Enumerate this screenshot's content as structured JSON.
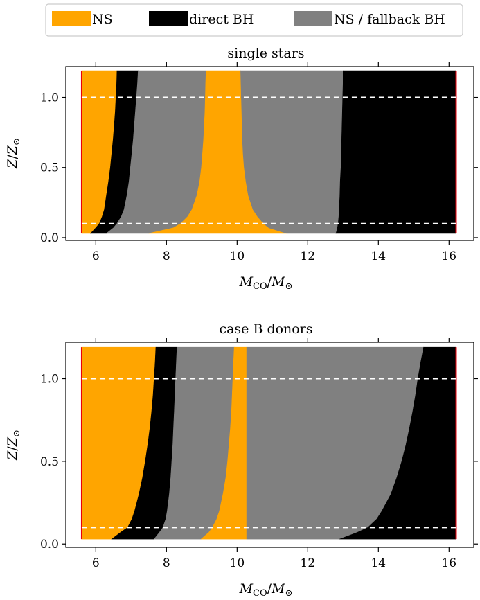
{
  "legend": {
    "entries": [
      {
        "label": "NS",
        "color": "#FFA500"
      },
      {
        "label": "direct BH",
        "color": "#000000"
      },
      {
        "label": "NS / fallback BH",
        "color": "#808080"
      }
    ]
  },
  "chart_data": [
    {
      "type": "area",
      "title": "single stars",
      "xlabel_main": "M",
      "xlabel_sub": "CO",
      "xlabel_sep": "/",
      "xlabel_main2": "M",
      "xlabel_sub2": "⊙",
      "ylabel_main": "Z",
      "ylabel_sep": "/",
      "ylabel_main2": "Z",
      "ylabel_sub2": "⊙",
      "xlim": [
        5.15,
        16.7
      ],
      "ylim": [
        -0.02,
        1.22
      ],
      "xticks": [
        6,
        8,
        10,
        12,
        14,
        16
      ],
      "xtick_labels": [
        "6",
        "8",
        "10",
        "12",
        "14",
        "16"
      ],
      "yticks": [
        0.0,
        0.5,
        1.0
      ],
      "ytick_labels": [
        "0.0",
        "0.5",
        "1.0"
      ],
      "z_range": [
        0.03,
        1.19
      ],
      "mass_range": [
        5.6,
        16.2
      ],
      "dashed_lines_y": [
        0.1,
        1.0
      ],
      "boundaries": {
        "z": [
          0.03,
          0.07,
          0.1,
          0.15,
          0.2,
          0.3,
          0.4,
          0.5,
          0.6,
          0.7,
          0.8,
          0.9,
          1.0,
          1.1,
          1.19
        ],
        "ns_to_bh1": [
          5.85,
          6.0,
          6.1,
          6.18,
          6.24,
          6.3,
          6.36,
          6.41,
          6.45,
          6.49,
          6.52,
          6.55,
          6.57,
          6.59,
          6.6
        ],
        "bh1_to_fb1": [
          6.3,
          6.5,
          6.6,
          6.72,
          6.8,
          6.88,
          6.94,
          6.98,
          7.02,
          7.06,
          7.09,
          7.12,
          7.15,
          7.18,
          7.2
        ],
        "fb1_to_ns2": [
          7.5,
          8.2,
          8.4,
          8.6,
          8.72,
          8.86,
          8.94,
          8.99,
          9.02,
          9.05,
          9.07,
          9.09,
          9.1,
          9.11,
          9.12
        ],
        "ns2_to_fb2": [
          11.4,
          10.9,
          10.75,
          10.58,
          10.45,
          10.32,
          10.25,
          10.2,
          10.17,
          10.15,
          10.14,
          10.13,
          10.12,
          10.11,
          10.1
        ],
        "fb2_to_bh2": [
          12.8,
          12.84,
          12.86,
          12.88,
          12.89,
          12.91,
          12.92,
          12.94,
          12.95,
          12.96,
          12.97,
          12.98,
          12.99,
          13.0,
          13.0
        ]
      }
    },
    {
      "type": "area",
      "title": "case B donors",
      "xlabel_main": "M",
      "xlabel_sub": "CO",
      "xlabel_sep": "/",
      "xlabel_main2": "M",
      "xlabel_sub2": "⊙",
      "ylabel_main": "Z",
      "ylabel_sep": "/",
      "ylabel_main2": "Z",
      "ylabel_sub2": "⊙",
      "xlim": [
        5.15,
        16.7
      ],
      "ylim": [
        -0.02,
        1.22
      ],
      "xticks": [
        6,
        8,
        10,
        12,
        14,
        16
      ],
      "xtick_labels": [
        "6",
        "8",
        "10",
        "12",
        "14",
        "16"
      ],
      "yticks": [
        0.0,
        0.5,
        1.0
      ],
      "ytick_labels": [
        "0.0",
        "0.5",
        "1.0"
      ],
      "z_range": [
        0.03,
        1.19
      ],
      "mass_range": [
        5.6,
        16.2
      ],
      "dashed_lines_y": [
        0.1,
        1.0
      ],
      "boundaries": {
        "z": [
          0.03,
          0.07,
          0.1,
          0.15,
          0.2,
          0.3,
          0.4,
          0.5,
          0.6,
          0.7,
          0.8,
          0.9,
          1.0,
          1.1,
          1.19
        ],
        "ns_to_bh1": [
          6.45,
          6.7,
          6.9,
          7.02,
          7.1,
          7.22,
          7.32,
          7.4,
          7.47,
          7.53,
          7.58,
          7.62,
          7.65,
          7.68,
          7.7
        ],
        "bh1_to_fb1": [
          7.65,
          7.8,
          7.9,
          7.98,
          8.02,
          8.08,
          8.12,
          8.15,
          8.18,
          8.2,
          8.22,
          8.24,
          8.26,
          8.28,
          8.3
        ],
        "fb1_to_ns2": [
          8.98,
          9.2,
          9.3,
          9.42,
          9.5,
          9.6,
          9.68,
          9.73,
          9.77,
          9.81,
          9.84,
          9.86,
          9.88,
          9.9,
          9.92
        ],
        "ns2_to_fb2": [
          10.27,
          10.27,
          10.27,
          10.27,
          10.27,
          10.27,
          10.27,
          10.27,
          10.27,
          10.27,
          10.27,
          10.27,
          10.27,
          10.27,
          10.27
        ],
        "fb2_to_bh2": [
          12.9,
          13.4,
          13.7,
          13.95,
          14.1,
          14.35,
          14.52,
          14.66,
          14.78,
          14.88,
          14.97,
          15.05,
          15.12,
          15.2,
          15.28
        ]
      }
    }
  ]
}
